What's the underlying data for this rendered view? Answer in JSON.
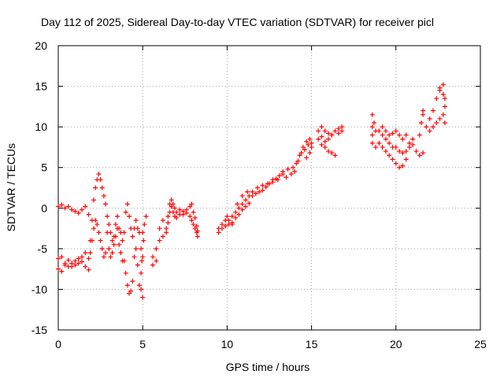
{
  "chart_data": {
    "type": "scatter",
    "title": "Day 112 of 2025, Sidereal Day-to-day VTEC variation (SDTVAR) for receiver picl",
    "xlabel": "GPS time / hours",
    "ylabel": "SDTVAR / TECUs",
    "xlim": [
      0,
      25
    ],
    "ylim": [
      -15,
      20
    ],
    "xticks": [
      0,
      5,
      10,
      15,
      20,
      25
    ],
    "yticks": [
      -15,
      -10,
      -5,
      0,
      5,
      10,
      15,
      20
    ],
    "grid": true,
    "marker": "+",
    "color": "#ff0000",
    "series": [
      {
        "points": [
          [
            0.0,
            0.2
          ],
          [
            0.2,
            0.4
          ],
          [
            0.4,
            0.0
          ],
          [
            0.6,
            0.2
          ],
          [
            0.8,
            -0.2
          ],
          [
            1.0,
            -0.4
          ],
          [
            1.2,
            -0.6
          ],
          [
            1.4,
            -0.2
          ],
          [
            1.6,
            0.2
          ],
          [
            1.8,
            -0.8
          ],
          [
            0.0,
            -7.5
          ],
          [
            0.2,
            -7.8
          ],
          [
            0.4,
            -7.0
          ],
          [
            0.6,
            -7.2
          ],
          [
            0.8,
            -6.8
          ],
          [
            1.0,
            -6.5
          ],
          [
            1.2,
            -6.8
          ],
          [
            1.4,
            -6.0
          ],
          [
            1.6,
            -5.5
          ],
          [
            1.8,
            -6.2
          ],
          [
            0.0,
            -6.2
          ],
          [
            0.2,
            -6.0
          ],
          [
            0.4,
            -6.8
          ],
          [
            0.6,
            -6.4
          ],
          [
            0.8,
            -7.2
          ],
          [
            1.0,
            -7.0
          ],
          [
            1.2,
            -6.2
          ],
          [
            1.4,
            -6.6
          ],
          [
            1.6,
            -7.2
          ],
          [
            1.8,
            -7.6
          ],
          [
            1.9,
            -4.0
          ],
          [
            2.0,
            -1.5
          ],
          [
            2.1,
            1.0
          ],
          [
            2.2,
            2.5
          ],
          [
            2.3,
            3.5
          ],
          [
            2.4,
            4.2
          ],
          [
            2.5,
            3.5
          ],
          [
            2.6,
            2.5
          ],
          [
            2.7,
            1.5
          ],
          [
            2.8,
            0.5
          ],
          [
            1.9,
            -5.5
          ],
          [
            2.0,
            -4.0
          ],
          [
            2.1,
            -2.5
          ],
          [
            2.2,
            -1.5
          ],
          [
            2.3,
            -2.0
          ],
          [
            2.4,
            -3.0
          ],
          [
            2.5,
            -4.0
          ],
          [
            2.6,
            -5.0
          ],
          [
            2.7,
            -6.0
          ],
          [
            2.8,
            -5.5
          ],
          [
            2.9,
            -1.0
          ],
          [
            3.0,
            -2.0
          ],
          [
            3.1,
            -3.0
          ],
          [
            3.2,
            -4.0
          ],
          [
            3.3,
            -3.5
          ],
          [
            3.4,
            -2.0
          ],
          [
            3.5,
            -1.0
          ],
          [
            3.6,
            -2.5
          ],
          [
            3.7,
            -3.0
          ],
          [
            3.8,
            -4.0
          ],
          [
            2.9,
            -3.0
          ],
          [
            3.0,
            -5.0
          ],
          [
            3.1,
            -6.0
          ],
          [
            3.2,
            -5.5
          ],
          [
            3.3,
            -4.5
          ],
          [
            3.4,
            -3.5
          ],
          [
            3.5,
            -2.5
          ],
          [
            3.6,
            -4.5
          ],
          [
            3.7,
            -5.5
          ],
          [
            3.8,
            -6.5
          ],
          [
            3.9,
            -3.0
          ],
          [
            4.0,
            -0.5
          ],
          [
            4.1,
            0.5
          ],
          [
            4.2,
            -1.0
          ],
          [
            4.3,
            -2.5
          ],
          [
            4.4,
            -3.5
          ],
          [
            4.5,
            -2.5
          ],
          [
            4.6,
            -1.5
          ],
          [
            4.7,
            -2.5
          ],
          [
            4.8,
            -3.0
          ],
          [
            3.9,
            -6.5
          ],
          [
            4.0,
            -8.0
          ],
          [
            4.1,
            -9.5
          ],
          [
            4.2,
            -10.5
          ],
          [
            4.3,
            -10.2
          ],
          [
            4.4,
            -9.0
          ],
          [
            4.5,
            -6.0
          ],
          [
            4.6,
            -5.0
          ],
          [
            4.7,
            -7.0
          ],
          [
            4.8,
            -9.5
          ],
          [
            4.9,
            -5.0
          ],
          [
            5.0,
            -3.0
          ],
          [
            5.1,
            -2.0
          ],
          [
            5.2,
            -1.0
          ],
          [
            4.9,
            -8.0
          ],
          [
            5.0,
            -6.0
          ],
          [
            4.9,
            -10.0
          ],
          [
            5.0,
            -11.0
          ],
          [
            5.05,
            -4.0
          ],
          [
            4.95,
            -6.5
          ],
          [
            5.6,
            -6.0
          ],
          [
            5.8,
            -5.0
          ],
          [
            6.0,
            -4.0
          ],
          [
            6.2,
            -3.5
          ],
          [
            6.4,
            -3.0
          ],
          [
            5.6,
            -7.0
          ],
          [
            5.8,
            -6.5
          ],
          [
            6.0,
            -2.5
          ],
          [
            6.2,
            -1.5
          ],
          [
            6.4,
            -2.5
          ],
          [
            6.5,
            -1.0
          ],
          [
            6.6,
            0.5
          ],
          [
            6.7,
            1.0
          ],
          [
            6.8,
            0.5
          ],
          [
            6.9,
            0.0
          ],
          [
            7.0,
            -0.5
          ],
          [
            7.2,
            -0.2
          ],
          [
            7.4,
            -0.8
          ],
          [
            7.6,
            -0.2
          ],
          [
            7.8,
            0.2
          ],
          [
            6.5,
            -1.8
          ],
          [
            6.6,
            -0.5
          ],
          [
            6.7,
            0.2
          ],
          [
            6.8,
            -0.5
          ],
          [
            6.9,
            -1.0
          ],
          [
            7.0,
            -1.2
          ],
          [
            7.2,
            -0.8
          ],
          [
            7.4,
            -0.4
          ],
          [
            7.6,
            -0.6
          ],
          [
            7.8,
            -1.0
          ],
          [
            7.9,
            -1.5
          ],
          [
            8.0,
            -2.0
          ],
          [
            8.1,
            -2.5
          ],
          [
            8.2,
            -3.0
          ],
          [
            8.25,
            -3.5
          ],
          [
            7.9,
            0.5
          ],
          [
            8.0,
            -0.5
          ],
          [
            8.1,
            -1.2
          ],
          [
            8.2,
            -2.2
          ],
          [
            8.25,
            -2.8
          ],
          [
            9.5,
            -2.5
          ],
          [
            9.7,
            -2.0
          ],
          [
            9.9,
            -1.5
          ],
          [
            10.1,
            -1.5
          ],
          [
            10.3,
            -1.0
          ],
          [
            10.5,
            -0.5
          ],
          [
            10.7,
            0.0
          ],
          [
            10.9,
            0.5
          ],
          [
            11.1,
            1.0
          ],
          [
            11.3,
            1.5
          ],
          [
            9.5,
            -3.0
          ],
          [
            9.7,
            -2.5
          ],
          [
            9.9,
            -2.2
          ],
          [
            10.1,
            -2.0
          ],
          [
            10.3,
            -1.8
          ],
          [
            10.5,
            -1.2
          ],
          [
            10.7,
            -0.8
          ],
          [
            10.9,
            -0.2
          ],
          [
            11.1,
            0.2
          ],
          [
            11.3,
            0.6
          ],
          [
            10.0,
            -1.0
          ],
          [
            10.3,
            -2.0
          ],
          [
            10.6,
            0.5
          ],
          [
            10.9,
            1.5
          ],
          [
            11.2,
            2.0
          ],
          [
            11.5,
            2.0
          ],
          [
            11.8,
            2.5
          ],
          [
            12.1,
            2.8
          ],
          [
            12.4,
            3.0
          ],
          [
            12.7,
            3.5
          ],
          [
            11.5,
            1.5
          ],
          [
            11.7,
            1.8
          ],
          [
            11.9,
            2.0
          ],
          [
            12.1,
            2.2
          ],
          [
            12.3,
            2.6
          ],
          [
            12.5,
            3.0
          ],
          [
            12.7,
            3.2
          ],
          [
            12.9,
            3.6
          ],
          [
            13.1,
            4.0
          ],
          [
            13.3,
            4.2
          ],
          [
            13.0,
            3.5
          ],
          [
            13.3,
            4.5
          ],
          [
            13.6,
            4.8
          ],
          [
            13.9,
            5.0
          ],
          [
            14.1,
            5.5
          ],
          [
            14.3,
            6.5
          ],
          [
            14.5,
            7.5
          ],
          [
            14.7,
            8.2
          ],
          [
            14.9,
            8.5
          ],
          [
            15.0,
            8.0
          ],
          [
            13.5,
            3.8
          ],
          [
            13.8,
            4.2
          ],
          [
            14.0,
            4.5
          ],
          [
            14.2,
            5.8
          ],
          [
            14.4,
            6.8
          ],
          [
            14.6,
            7.2
          ],
          [
            14.8,
            7.8
          ],
          [
            15.0,
            7.5
          ],
          [
            14.9,
            6.8
          ],
          [
            14.7,
            6.2
          ],
          [
            15.4,
            8.5
          ],
          [
            15.6,
            8.8
          ],
          [
            15.8,
            8.2
          ],
          [
            16.0,
            8.5
          ],
          [
            16.2,
            9.0
          ],
          [
            16.4,
            9.5
          ],
          [
            16.6,
            9.8
          ],
          [
            16.8,
            10.0
          ],
          [
            15.6,
            7.8
          ],
          [
            15.8,
            7.5
          ],
          [
            16.0,
            7.0
          ],
          [
            16.2,
            6.8
          ],
          [
            16.4,
            6.5
          ],
          [
            15.4,
            9.5
          ],
          [
            15.6,
            10.0
          ],
          [
            15.8,
            9.5
          ],
          [
            16.0,
            9.2
          ],
          [
            16.2,
            9.0
          ],
          [
            16.6,
            9.2
          ],
          [
            16.8,
            9.5
          ],
          [
            18.6,
            8.0
          ],
          [
            18.6,
            9.0
          ],
          [
            18.6,
            10.0
          ],
          [
            18.6,
            11.5
          ],
          [
            18.7,
            10.5
          ],
          [
            18.8,
            9.5
          ],
          [
            19.0,
            9.5
          ],
          [
            19.2,
            9.0
          ],
          [
            19.4,
            8.5
          ],
          [
            19.6,
            8.0
          ],
          [
            19.8,
            7.5
          ],
          [
            20.0,
            7.5
          ],
          [
            20.2,
            7.0
          ],
          [
            20.4,
            6.8
          ],
          [
            20.6,
            7.0
          ],
          [
            20.8,
            7.5
          ],
          [
            21.0,
            7.8
          ],
          [
            21.2,
            7.0
          ],
          [
            21.4,
            6.5
          ],
          [
            21.6,
            6.8
          ],
          [
            18.8,
            7.5
          ],
          [
            19.0,
            8.0
          ],
          [
            19.2,
            7.5
          ],
          [
            19.4,
            7.0
          ],
          [
            19.6,
            6.5
          ],
          [
            19.8,
            6.0
          ],
          [
            20.0,
            5.5
          ],
          [
            20.2,
            5.0
          ],
          [
            20.4,
            5.2
          ],
          [
            20.6,
            6.0
          ],
          [
            19.2,
            10.0
          ],
          [
            19.4,
            9.5
          ],
          [
            19.6,
            9.0
          ],
          [
            19.8,
            9.2
          ],
          [
            20.0,
            9.5
          ],
          [
            20.2,
            9.0
          ],
          [
            20.4,
            8.5
          ],
          [
            20.6,
            9.0
          ],
          [
            20.8,
            8.0
          ],
          [
            21.0,
            8.5
          ],
          [
            21.4,
            9.0
          ],
          [
            21.5,
            10.5
          ],
          [
            21.6,
            11.5
          ],
          [
            21.6,
            12.0
          ],
          [
            21.8,
            10.0
          ],
          [
            22.0,
            11.0
          ],
          [
            22.2,
            12.0
          ],
          [
            22.4,
            13.5
          ],
          [
            22.6,
            14.5
          ],
          [
            22.8,
            15.2
          ],
          [
            22.0,
            9.5
          ],
          [
            22.2,
            10.0
          ],
          [
            22.4,
            10.5
          ],
          [
            22.6,
            11.0
          ],
          [
            22.8,
            11.5
          ],
          [
            22.9,
            12.5
          ],
          [
            22.9,
            13.5
          ],
          [
            22.8,
            14.0
          ],
          [
            22.6,
            14.8
          ],
          [
            22.9,
            10.5
          ]
        ]
      }
    ]
  }
}
